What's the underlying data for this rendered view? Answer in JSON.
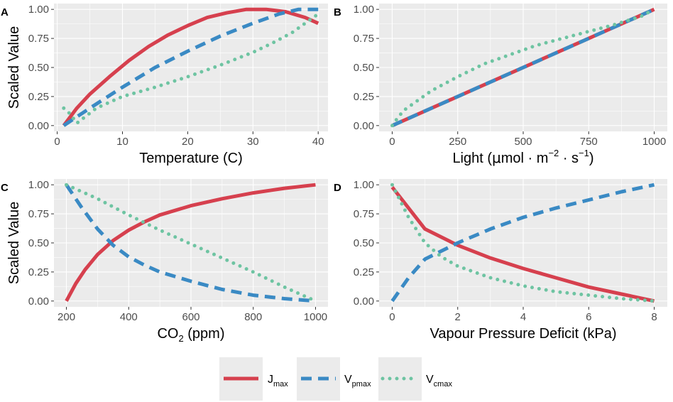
{
  "chart_data": [
    {
      "type": "line",
      "panel": "A",
      "xlabel": "Temperature (C)",
      "ylabel": "Scaled Value",
      "xlim": [
        -0.5,
        41.5
      ],
      "ylim": [
        -0.05,
        1.05
      ],
      "xticks": [
        0,
        10,
        20,
        30,
        40
      ],
      "xtick_labels": [
        "0",
        "10",
        "20",
        "30",
        "40"
      ],
      "yticks": [
        0,
        0.25,
        0.5,
        0.75,
        1
      ],
      "ytick_labels": [
        "0.00",
        "0.25",
        "0.50",
        "0.75",
        "1.00"
      ],
      "series": [
        {
          "key": "jmax",
          "x": [
            1,
            3,
            5,
            8,
            11,
            14,
            17,
            20,
            23,
            26,
            29,
            32,
            35,
            38,
            40
          ],
          "y": [
            0,
            0.15,
            0.27,
            0.42,
            0.56,
            0.68,
            0.78,
            0.86,
            0.93,
            0.97,
            1.0,
            1.0,
            0.98,
            0.93,
            0.88
          ]
        },
        {
          "key": "vpmax",
          "x": [
            1,
            5,
            10,
            15,
            20,
            25,
            30,
            34,
            37,
            40
          ],
          "y": [
            0,
            0.15,
            0.33,
            0.5,
            0.64,
            0.77,
            0.88,
            0.96,
            1.0,
            1.0
          ]
        },
        {
          "key": "vcmax",
          "x": [
            1,
            2,
            3,
            6,
            10,
            15,
            20,
            25,
            30,
            33,
            36,
            38,
            40
          ],
          "y": [
            0.15,
            0.1,
            0.02,
            0.15,
            0.25,
            0.33,
            0.42,
            0.52,
            0.63,
            0.71,
            0.8,
            0.88,
            0.96
          ]
        }
      ]
    },
    {
      "type": "line",
      "panel": "B",
      "xlabel_main": "Light (",
      "xlabel_mu": "μ",
      "xlabel_unit": "mol · m",
      "xlabel_exp1": "−2",
      "xlabel_mid": " · s",
      "xlabel_exp2": "−1",
      "xlabel_end": ")",
      "ylabel": "",
      "xlim": [
        -50,
        1050
      ],
      "ylim": [
        -0.05,
        1.05
      ],
      "xticks": [
        0,
        250,
        500,
        750,
        1000
      ],
      "xtick_labels": [
        "0",
        "250",
        "500",
        "750",
        "1000"
      ],
      "yticks": [
        0,
        0.25,
        0.5,
        0.75,
        1
      ],
      "ytick_labels": [
        "0.00",
        "0.25",
        "0.50",
        "0.75",
        "1.00"
      ],
      "series": [
        {
          "key": "jmax",
          "x": [
            0,
            1000
          ],
          "y": [
            0,
            1
          ]
        },
        {
          "key": "vpmax",
          "x": [
            0,
            1000
          ],
          "y": [
            0,
            1
          ]
        },
        {
          "key": "vcmax",
          "x": [
            0,
            25,
            50,
            100,
            150,
            250,
            350,
            450,
            550,
            650,
            750,
            850,
            950,
            1000
          ],
          "y": [
            0,
            0.08,
            0.14,
            0.22,
            0.3,
            0.42,
            0.53,
            0.61,
            0.69,
            0.75,
            0.81,
            0.87,
            0.94,
            1.0
          ]
        }
      ]
    },
    {
      "type": "line",
      "panel": "C",
      "xlabel_pre": "CO",
      "xlabel_sub": "2",
      "xlabel_post": " (ppm)",
      "ylabel": "Scaled Value",
      "xlim": [
        160,
        1040
      ],
      "ylim": [
        -0.05,
        1.05
      ],
      "xticks": [
        200,
        400,
        600,
        800,
        1000
      ],
      "xtick_labels": [
        "200",
        "400",
        "600",
        "800",
        "1000"
      ],
      "yticks": [
        0,
        0.25,
        0.5,
        0.75,
        1
      ],
      "ytick_labels": [
        "0.00",
        "0.25",
        "0.50",
        "0.75",
        "1.00"
      ],
      "series": [
        {
          "key": "jmax",
          "x": [
            200,
            230,
            260,
            300,
            350,
            400,
            450,
            500,
            600,
            700,
            800,
            900,
            1000
          ],
          "y": [
            0,
            0.15,
            0.27,
            0.4,
            0.52,
            0.61,
            0.68,
            0.74,
            0.82,
            0.88,
            0.93,
            0.97,
            1.0
          ]
        },
        {
          "key": "vpmax",
          "x": [
            200,
            250,
            300,
            350,
            400,
            450,
            500,
            600,
            700,
            800,
            900,
            1000
          ],
          "y": [
            1.0,
            0.8,
            0.62,
            0.48,
            0.38,
            0.31,
            0.25,
            0.17,
            0.1,
            0.05,
            0.02,
            0.0
          ]
        },
        {
          "key": "vcmax",
          "x": [
            200,
            300,
            400,
            500,
            600,
            700,
            800,
            900,
            1000
          ],
          "y": [
            1.0,
            0.88,
            0.74,
            0.61,
            0.49,
            0.37,
            0.25,
            0.12,
            0.0
          ]
        }
      ]
    },
    {
      "type": "line",
      "panel": "D",
      "xlabel": "Vapour Pressure Deficit (kPa)",
      "ylabel": "",
      "xlim": [
        -0.4,
        8.4
      ],
      "ylim": [
        -0.05,
        1.05
      ],
      "xticks": [
        0,
        2,
        4,
        6,
        8
      ],
      "xtick_labels": [
        "0",
        "2",
        "4",
        "6",
        "8"
      ],
      "yticks": [
        0,
        0.25,
        0.5,
        0.75,
        1
      ],
      "ytick_labels": [
        "0.00",
        "0.25",
        "0.50",
        "0.75",
        "1.00"
      ],
      "series": [
        {
          "key": "jmax",
          "x": [
            0,
            1,
            2,
            3,
            4,
            5,
            6,
            7,
            8
          ],
          "y": [
            0.98,
            0.62,
            0.48,
            0.37,
            0.28,
            0.2,
            0.12,
            0.06,
            0.0
          ]
        },
        {
          "key": "vpmax",
          "x": [
            0,
            0.5,
            1,
            2,
            3,
            4,
            5,
            6,
            7,
            8
          ],
          "y": [
            0,
            0.2,
            0.36,
            0.5,
            0.62,
            0.72,
            0.8,
            0.87,
            0.94,
            1.0
          ]
        },
        {
          "key": "vcmax",
          "x": [
            0,
            0.5,
            1,
            1.5,
            2,
            3,
            4,
            5,
            6,
            7,
            8
          ],
          "y": [
            1.0,
            0.72,
            0.5,
            0.38,
            0.3,
            0.2,
            0.13,
            0.08,
            0.05,
            0.02,
            0.0
          ]
        }
      ]
    }
  ],
  "styles": {
    "jmax": {
      "color": "#d6404e",
      "dash": "",
      "width": 5,
      "linecap": "butt"
    },
    "vpmax": {
      "color": "#3a8ac4",
      "dash": "15 9",
      "width": 5,
      "linecap": "butt"
    },
    "vcmax": {
      "color": "#6ec4a2",
      "dash": "0 10",
      "width": 5,
      "linecap": "round"
    }
  },
  "legend": {
    "position": "bottom",
    "items": [
      {
        "key": "jmax",
        "main": "J",
        "sub": "max"
      },
      {
        "key": "vpmax",
        "main": "V",
        "sub": "pmax"
      },
      {
        "key": "vcmax",
        "main": "V",
        "sub": "cmax"
      }
    ]
  }
}
